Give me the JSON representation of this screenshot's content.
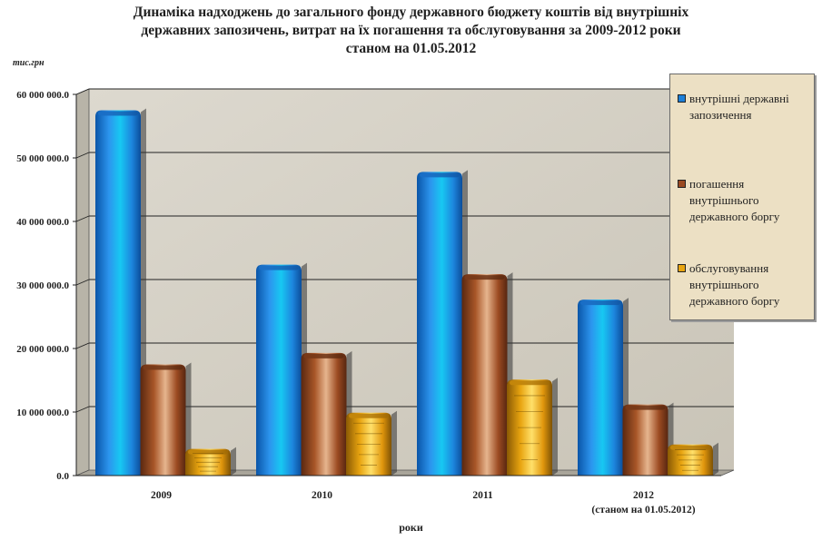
{
  "chart_data": {
    "type": "bar",
    "title": "Динаміка надходжень до загального фонду державного бюджету коштів від внутрішніх державних запозичень, витрат на їх погашення та обслуговування за 2009-2012 роки станом на 01.05.2012",
    "title_lines": [
      "Динаміка надходжень до загального фонду державного бюджету коштів від внутрішніх",
      "державних запозичень, витрат на їх погашення та обслуговування за 2009-2012 роки",
      "станом на 01.05.2012"
    ],
    "unit_label": "тис.грн",
    "xlabel": "роки",
    "ylabel": "",
    "categories": [
      "2009",
      "2010",
      "2011",
      "2012"
    ],
    "category_sublabels": [
      "",
      "",
      "",
      "(станом на 01.05.2012)"
    ],
    "ylim": [
      0,
      60000000
    ],
    "yticks": [
      0,
      10000000,
      20000000,
      30000000,
      40000000,
      50000000,
      60000000
    ],
    "ytick_labels": [
      "0.0",
      "10 000 000.0",
      "20 000 000.0",
      "30 000 000.0",
      "40 000 000.0",
      "50 000 000.0",
      "60 000 000.0"
    ],
    "grid": true,
    "legend_position": "right",
    "series": [
      {
        "name": "внутрішні державні запозичення",
        "values": [
          57500000,
          33200000,
          47800000,
          27700000
        ],
        "color": "#1c7fd8"
      },
      {
        "name": "погашення внутрішнього державного боргу",
        "values": [
          17500000,
          19300000,
          31700000,
          11200000
        ],
        "color": "#9a4a22"
      },
      {
        "name": "обслуговування внутрішнього державного боргу",
        "values": [
          4200000,
          9900000,
          15100000,
          4900000
        ],
        "color": "#e8a410"
      }
    ]
  }
}
